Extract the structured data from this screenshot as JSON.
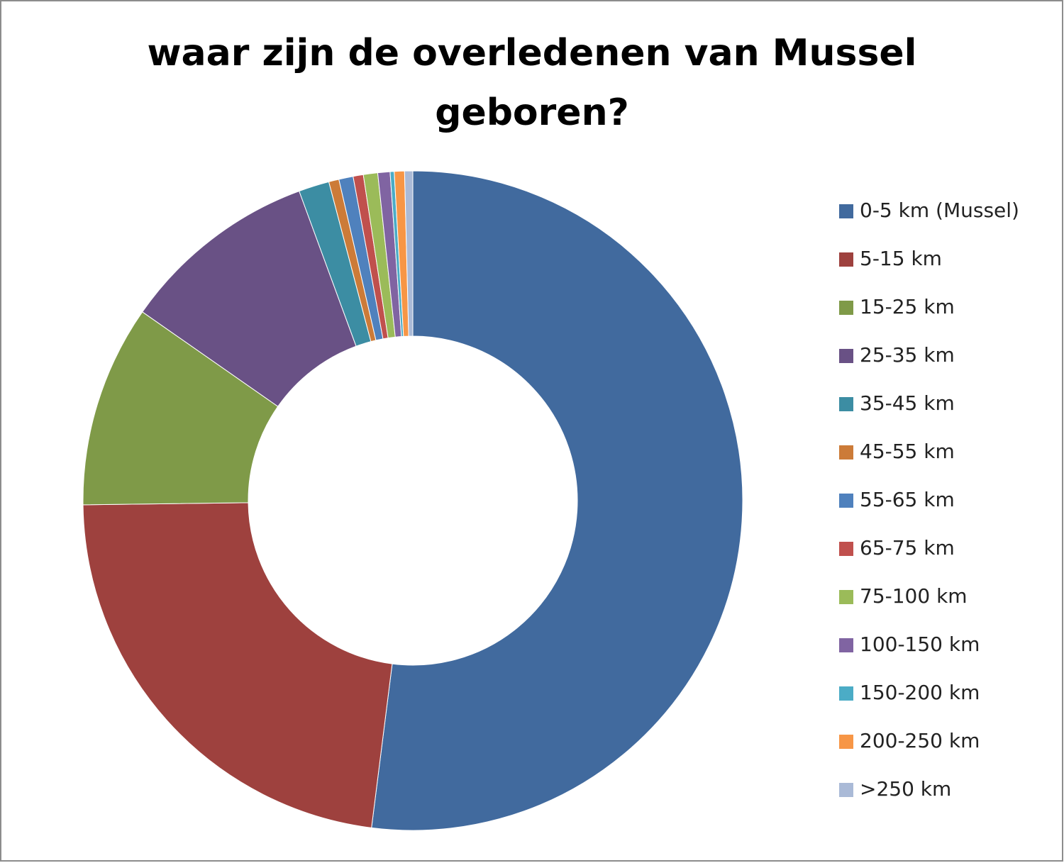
{
  "chart_data": {
    "type": "donut",
    "title": "waar zijn de overledenen van Mussel geboren?",
    "categories": [
      "0-5 km  (Mussel)",
      "5-15 km",
      "15-25 km",
      "25-35 km",
      "35-45 km",
      "45-55 km",
      "55-65 km",
      "65-75 km",
      "75-100 km",
      "100-150 km",
      "150-200 km",
      "200-250 km",
      ">250 km"
    ],
    "values": [
      52,
      22.8,
      9.9,
      9.7,
      1.5,
      0.5,
      0.7,
      0.5,
      0.7,
      0.6,
      0.2,
      0.5,
      0.4
    ],
    "colors": [
      "#416a9e",
      "#9e413e",
      "#7f9a48",
      "#695185",
      "#3c8da3",
      "#cc7b38",
      "#4f81bd",
      "#c0504d",
      "#9bbb59",
      "#8064a2",
      "#4bacc6",
      "#f79646",
      "#aabad7"
    ],
    "legend": "right"
  }
}
